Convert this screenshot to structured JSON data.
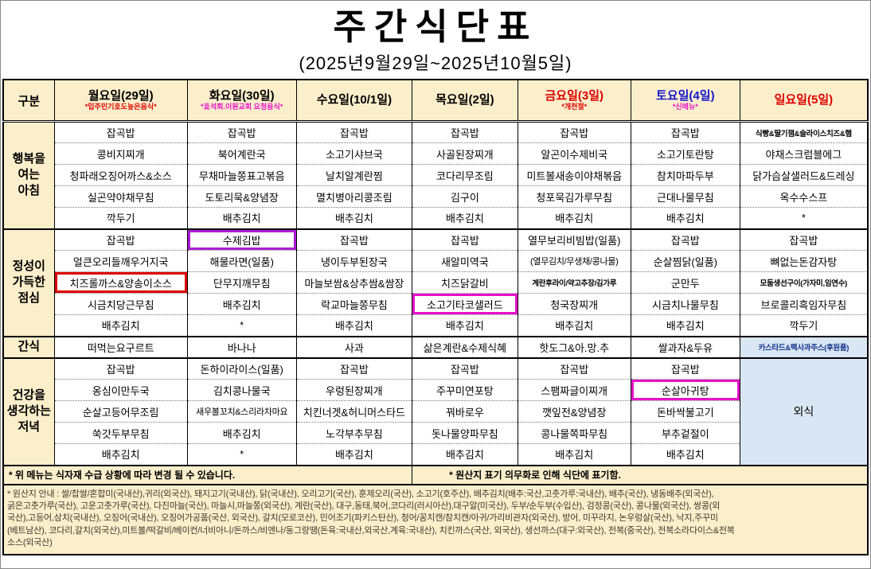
{
  "title": "주간식단표",
  "subtitle": "(2025년9월29일~2025년10월5일)",
  "colors": {
    "cream": "#FBEECB",
    "blue_cell": "#D9E7F5",
    "red": "#DD0000",
    "blue": "#1515CC",
    "magenta": "#E611C9",
    "purple": "#AD1CD6",
    "navy": "#16348C",
    "black": "#000000"
  },
  "header": {
    "gubun": "구분",
    "days": [
      {
        "label": "월요일(29일)",
        "sub": "*입주민기호도높은음식*",
        "label_color": "black",
        "sub_color": "red"
      },
      {
        "label": "화요일(30일)",
        "sub": "*효석회.이원교회 요청음식*",
        "label_color": "black",
        "sub_color": "magenta"
      },
      {
        "label": "수요일(10/1일)",
        "sub": "",
        "label_color": "black",
        "sub_color": "black"
      },
      {
        "label": "목요일(2일)",
        "sub": "",
        "label_color": "black",
        "sub_color": "black"
      },
      {
        "label": "금요일(3일)",
        "sub": "*개천절*",
        "label_color": "red",
        "sub_color": "red"
      },
      {
        "label": "토요일(4일)",
        "sub": "*신메뉴*",
        "label_color": "blue",
        "sub_color": "magenta"
      },
      {
        "label": "일요일(5일)",
        "sub": "",
        "label_color": "red",
        "sub_color": "black"
      }
    ]
  },
  "sections": [
    {
      "id": "breakfast",
      "label": "행복을\n여는\n아침",
      "rows": [
        [
          "잡곡밥",
          "잡곡밥",
          "잡곡밥",
          "잡곡밥",
          "잡곡밥",
          "잡곡밥",
          {
            "t": "식빵&딸기잼&슬라이스치즈&햄",
            "cls": "xsmall"
          }
        ],
        [
          "콩비지찌개",
          "북어계란국",
          "소고기샤브국",
          "사골된장찌개",
          "알곤이수제비국",
          "소고기토란탕",
          "야채스크럼블에그"
        ],
        [
          "청파래오징어까스&소스",
          "무채마늘쫑표고볶음",
          "날치알계란찜",
          "코다리무조림",
          "미트볼새송이야채볶음",
          "참치마파두부",
          "닭가슴살샐러드&드레싱"
        ],
        [
          "실곤약야채무침",
          "도토리묵&양념장",
          "멸치병아리콩조림",
          "김구이",
          "청포묵김가루무침",
          "근대나물무침",
          "옥수수스프"
        ],
        [
          "깍두기",
          "배추김치",
          "배추김치",
          "배추김치",
          "배추김치",
          "배추김치",
          "*"
        ]
      ]
    },
    {
      "id": "lunch",
      "label": "정성이\n가득한\n점심",
      "rows": [
        [
          "잡곡밥",
          {
            "t": "수제김밥",
            "hl": "purple"
          },
          "잡곡밥",
          "잡곡밥",
          "열무보리비빔밥(일품)",
          "잡곡밥",
          "잡곡밥"
        ],
        [
          "얼큰오리들깨우거지국",
          "해물라면(일품)",
          "냉이두부된장국",
          "새알미역국",
          {
            "t": "(열무김치/무생채/콩나물)",
            "cls": "small"
          },
          "순살찜닭(일품)",
          "뼈없는돈감자탕"
        ],
        [
          {
            "t": "치즈롤까스&양송이소스",
            "hl": "red"
          },
          "단무지깨무침",
          "마늘보쌈&상추쌈&쌈장",
          "치즈닭갈비",
          {
            "t": "계란후라이/약고추장/김가루",
            "cls": "xsmall"
          },
          "군만두",
          {
            "t": "모둠생선구이(가자미,임연수)",
            "cls": "xsmall"
          }
        ],
        [
          "시금치당근무침",
          "배추김치",
          "락교마늘쫑무침",
          {
            "t": "소고기타코샐러드",
            "hl": "magenta"
          },
          "청국장찌개",
          "시금치나물무침",
          "브로콜리흑임자무침"
        ],
        [
          "배추김치",
          "*",
          "배추김치",
          "배추김치",
          "배추김치",
          "배추김치",
          "깍두기"
        ]
      ]
    },
    {
      "id": "snack",
      "label": "간식",
      "rows": [
        [
          "떠먹는요구르트",
          "바나나",
          "사과",
          "삶은계란&수제식혜",
          "핫도그&아.망.추",
          "쌀과자&두유",
          {
            "t": "카스타드&팩사과주스(후원품)",
            "cls": "xsmall",
            "bg": "blue",
            "color": "navy"
          }
        ]
      ]
    },
    {
      "id": "dinner",
      "label": "건강을\n생각하는\n저녁",
      "merged_sunday": "외식",
      "rows": [
        [
          "잡곡밥",
          "돈하이라이스(일품)",
          "잡곡밥",
          "잡곡밥",
          "잡곡밥",
          "잡곡밥"
        ],
        [
          "옹심이만두국",
          "김치콩나물국",
          "우렁된장찌개",
          "주꾸미연포탕",
          "스팸짜글이찌개",
          {
            "t": "순살아귀탕",
            "hl": "magenta"
          }
        ],
        [
          "순살고등어무조림",
          {
            "t": "새우볼꼬치&스리라차마요",
            "cls": "small"
          },
          "치킨너겟&허니머스타드",
          "꿔바로우",
          "깻잎전&양념장",
          "돈바싹불고기"
        ],
        [
          "쑥갓두부무침",
          "배추김치",
          "노각부추무침",
          "돗나물양파무침",
          "콩나물쪽파무침",
          "부추겉절이"
        ],
        [
          "배추김치",
          "*",
          "배추김치",
          "배추김치",
          "배추김치",
          "배추김치"
        ]
      ]
    }
  ],
  "notes": {
    "left": "* 위 메뉴는 식자재 수급 상황에 따라 변경 될 수 있습니다.",
    "right": "* 원산지 표기 의무화로 인해 식단에 표기함."
  },
  "origin_lines": [
    "* 원산지 안내 : 쌀/찹쌀/혼합미(국내산),귀리(외국산), 돼지고기(국내산), 닭(국내산), 오리고기(국산), 훈제오리(국산), 소고기(호주산), 배추김치(배추:국산,고춧가루:국내산), 배추(국산), 냉동배추(외국산),",
    "굵은고춧가루(국산), 고운고춧가루(국산), 다진마늘(국산), 마늘시,마늘쫑(외국산), 계란(국산), 대구,동태,북어,코다리(러시아산),대구알(미국산), 두부/순두부(수입산), 검정콩(국산), 콩나물(외국산), 쌍콩(외",
    "국산),고등어,삼치(국내산), 오징어(국내산), 오징어가공품(국산, 외국산), 갈치(모로코산), 민어조기(파키스탄산), 청어/꽁치캔/참치캔/아귀/가리비관자(외국산), 방어, 미꾸라지, 논우렁살(국산), 낙지,주꾸미",
    "(베트남산), 코다리,갈치(외국산),미트볼/떡갈비/베이컨/너비아니/돈까스/비엔나/동그랑땡(돈육:국내산,외국산,계육:국내산), 치킨까스(국산, 외국산), 생선까스(대구:외국산), 전복(중국산), 전복소라다이스&전복",
    "소스(외국산)"
  ]
}
